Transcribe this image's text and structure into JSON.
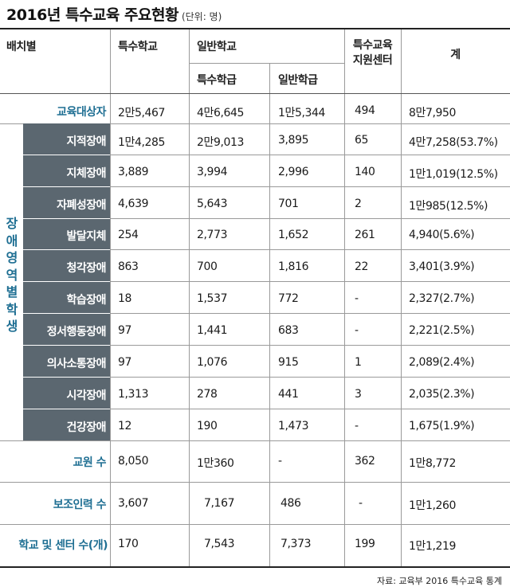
{
  "title": "2016년 특수교육 주요현황",
  "unit": "(단위: 명)",
  "headers": {
    "placement": "배치별",
    "special_school": "특수학교",
    "general_school": "일반학교",
    "special_class": "특수학급",
    "general_class": "일반학급",
    "support_center_line1": "특수교육",
    "support_center_line2": "지원센터",
    "total": "계"
  },
  "target_row": {
    "label": "교육대상자",
    "values": [
      "2만5,467",
      "4만6,645",
      "1만5,344",
      "494",
      "8만7,950"
    ]
  },
  "disability_group_label": [
    "장",
    "애",
    "영",
    "역",
    "별",
    "학",
    "생"
  ],
  "disability_rows": [
    {
      "label": "지적장애",
      "values": [
        "1만4,285",
        "2만9,013",
        "3,895",
        "65",
        "4만7,258(53.7%)"
      ]
    },
    {
      "label": "지체장애",
      "values": [
        "3,889",
        "3,994",
        "2,996",
        "140",
        "1만1,019(12.5%)"
      ]
    },
    {
      "label": "자폐성장애",
      "values": [
        "4,639",
        "5,643",
        "701",
        "2",
        "1만985(12.5%)"
      ]
    },
    {
      "label": "발달지체",
      "values": [
        "254",
        "2,773",
        "1,652",
        "261",
        "4,940(5.6%)"
      ]
    },
    {
      "label": "청각장애",
      "values": [
        "863",
        "700",
        "1,816",
        "22",
        "3,401(3.9%)"
      ]
    },
    {
      "label": "학습장애",
      "values": [
        "18",
        "1,537",
        "772",
        "-",
        "2,327(2.7%)"
      ]
    },
    {
      "label": "정서행동장애",
      "values": [
        "97",
        "1,441",
        "683",
        "-",
        "2,221(2.5%)"
      ]
    },
    {
      "label": "의사소통장애",
      "values": [
        "97",
        "1,076",
        "915",
        "1",
        "2,089(2.4%)"
      ]
    },
    {
      "label": "시각장애",
      "values": [
        "1,313",
        "278",
        "441",
        "3",
        "2,035(2.3%)"
      ]
    },
    {
      "label": "건강장애",
      "values": [
        "12",
        "190",
        "1,473",
        "-",
        "1,675(1.9%)"
      ]
    }
  ],
  "bottom_rows": [
    {
      "label": "교원 수",
      "values": [
        "8,050",
        "1만360",
        "-",
        "362",
        "1만8,772"
      ]
    },
    {
      "label": "보조인력 수",
      "values": [
        "3,607",
        "7,167",
        "486",
        "-",
        "1만1,260"
      ]
    },
    {
      "label": "학교 및 센터 수(개)",
      "values": [
        "170",
        "7,543",
        "7,373",
        "199",
        "1만1,219"
      ]
    }
  ],
  "source": "자료: 교육부 2016 특수교육 통계",
  "colors": {
    "label_blue": "#1f6f93",
    "sidebar_gray": "#5b6770"
  }
}
